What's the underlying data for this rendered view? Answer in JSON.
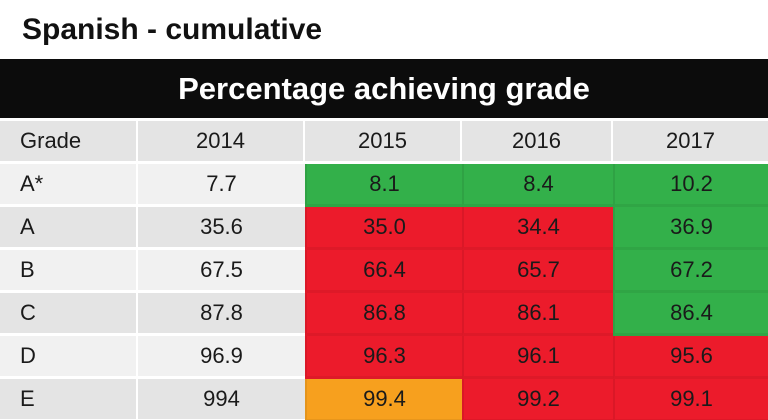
{
  "page": {
    "title": "Spanish - cumulative"
  },
  "table": {
    "banner": "Percentage achieving grade",
    "columns": [
      "Grade",
      "2014",
      "2015",
      "2016",
      "2017"
    ],
    "rows": [
      {
        "grade": "A*",
        "values": [
          "7.7",
          "8.1",
          "8.4",
          "10.2"
        ],
        "colors": [
          "plain",
          "green",
          "green",
          "green"
        ]
      },
      {
        "grade": "A",
        "values": [
          "35.6",
          "35.0",
          "34.4",
          "36.9"
        ],
        "colors": [
          "plain",
          "red",
          "red",
          "green"
        ]
      },
      {
        "grade": "B",
        "values": [
          "67.5",
          "66.4",
          "65.7",
          "67.2"
        ],
        "colors": [
          "plain",
          "red",
          "red",
          "green"
        ]
      },
      {
        "grade": "C",
        "values": [
          "87.8",
          "86.8",
          "86.1",
          "86.4"
        ],
        "colors": [
          "plain",
          "red",
          "red",
          "green"
        ]
      },
      {
        "grade": "D",
        "values": [
          "96.9",
          "96.3",
          "96.1",
          "95.6"
        ],
        "colors": [
          "plain",
          "red",
          "red",
          "red"
        ]
      },
      {
        "grade": "E",
        "values": [
          "994",
          "99.4",
          "99.2",
          "99.1"
        ],
        "colors": [
          "plain",
          "orange",
          "red",
          "red"
        ]
      }
    ]
  },
  "colors": {
    "green": "#33b04a",
    "red": "#ec1b2b",
    "orange": "#f7a01e",
    "row_dark": "#e4e4e4",
    "row_light": "#f1f1f1",
    "banner_bg": "#0c0c0c",
    "banner_text": "#ffffff",
    "text": "#1a1a1a"
  }
}
